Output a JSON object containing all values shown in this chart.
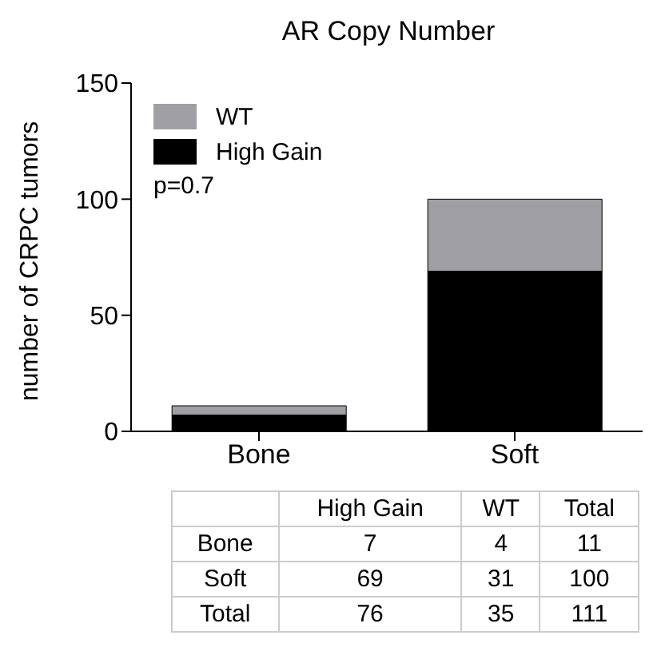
{
  "chart_data": {
    "type": "bar",
    "title": "AR Copy Number",
    "ylabel": "number of CRPC tumors",
    "categories": [
      "Bone",
      "Soft"
    ],
    "stacked": true,
    "series": [
      {
        "name": "High Gain",
        "color": "#000000",
        "values": [
          7,
          69
        ]
      },
      {
        "name": "WT",
        "color": "#a0a0a4",
        "values": [
          4,
          31
        ]
      }
    ],
    "ylim": [
      0,
      150
    ],
    "yticks": [
      0,
      50,
      100,
      150
    ],
    "grid": false,
    "legend": "top left",
    "annotations": [
      "p=0.7",
      "High Gain",
      "WT",
      "Total",
      "Bone",
      "7",
      "4",
      "11",
      "Soft",
      "69",
      "31",
      "100",
      "Total",
      "76",
      "35",
      "111"
    ]
  }
}
